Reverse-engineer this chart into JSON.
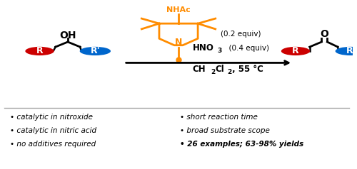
{
  "fig_width": 5.0,
  "fig_height": 2.38,
  "dpi": 100,
  "bg_color": "#ffffff",
  "orange_color": "#FF8C00",
  "red_color": "#CC0000",
  "blue_color": "#0066CC",
  "black_color": "#000000",
  "bullet_left": [
    "catalytic in nitroxide",
    "catalytic in nitric acid",
    "no additives required"
  ],
  "bullet_right": [
    "short reaction time",
    "broad substrate scope",
    "26 examples; 63-98% yields"
  ]
}
